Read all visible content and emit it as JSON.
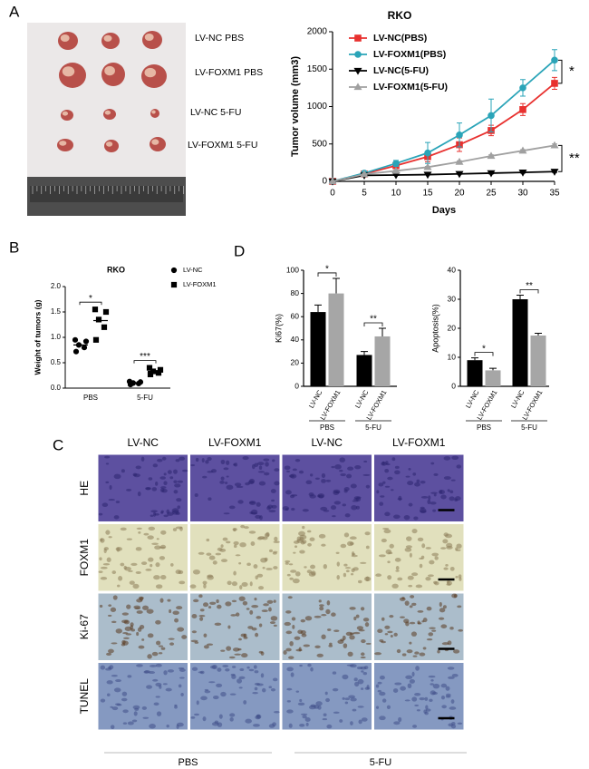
{
  "panel_labels": [
    "A",
    "B",
    "C",
    "D"
  ],
  "photo_labels": [
    "LV-NC PBS",
    "LV-FOXM1 PBS",
    "LV-NC 5-FU",
    "LV-FOXM1 5-FU"
  ],
  "chart_data": [
    {
      "type": "line",
      "title": "RKO",
      "xlabel": "Days",
      "ylabel": "Tumor volume (mm3)",
      "x": [
        0,
        5,
        10,
        15,
        20,
        25,
        30,
        35
      ],
      "xlim": [
        0,
        35
      ],
      "xticks": [
        0,
        5,
        10,
        15,
        20,
        25,
        30,
        35
      ],
      "ylim": [
        0,
        2000
      ],
      "yticks": [
        0,
        500,
        1000,
        1500,
        2000
      ],
      "legend": "upper left",
      "series": [
        {
          "name": "LV-NC(PBS)",
          "color": "#e8312f",
          "marker": "square",
          "values": [
            0,
            100,
            210,
            330,
            490,
            680,
            960,
            1310
          ],
          "errors": [
            0,
            15,
            30,
            70,
            90,
            70,
            80,
            80
          ]
        },
        {
          "name": "LV-FOXM1(PBS)",
          "color": "#2aa4b8",
          "marker": "circle",
          "values": [
            0,
            110,
            240,
            380,
            620,
            880,
            1250,
            1620
          ],
          "errors": [
            0,
            20,
            40,
            140,
            160,
            220,
            110,
            140
          ]
        },
        {
          "name": "LV-NC(5-FU)",
          "color": "#000000",
          "marker": "triangle-down",
          "values": [
            0,
            80,
            85,
            90,
            100,
            110,
            120,
            130
          ],
          "errors": [
            0,
            5,
            5,
            5,
            5,
            10,
            10,
            10
          ]
        },
        {
          "name": "LV-FOXM1(5-FU)",
          "color": "#a0a0a0",
          "marker": "triangle-up",
          "values": [
            0,
            95,
            140,
            190,
            260,
            340,
            410,
            480
          ],
          "errors": [
            0,
            5,
            10,
            10,
            15,
            15,
            15,
            20
          ]
        }
      ],
      "annotations": [
        "*",
        "**"
      ]
    },
    {
      "type": "dot",
      "title": "RKO",
      "ylabel": "Weight of tumors (g)",
      "categories": [
        "PBS",
        "5-FU"
      ],
      "ylim": [
        0,
        2
      ],
      "yticks": [
        {
          "value": 0,
          "label": "0.0"
        },
        0.5,
        {
          "value": 1,
          "label": "1.0"
        },
        1.5,
        {
          "value": 2,
          "label": "2.0"
        }
      ],
      "legend": "upper right",
      "series": [
        {
          "name": "LV-NC",
          "color": "#000000",
          "marker": "circle",
          "values": [
            [
              0.72,
              0.8,
              0.85,
              0.92,
              0.95
            ],
            [
              0.07,
              0.09,
              0.1,
              0.12,
              0.13
            ]
          ],
          "means": [
            0.85,
            0.1
          ]
        },
        {
          "name": "LV-FOXM1",
          "color": "#000000",
          "marker": "square",
          "values": [
            [
              0.95,
              1.2,
              1.35,
              1.5,
              1.55
            ],
            [
              0.27,
              0.3,
              0.33,
              0.36,
              0.4
            ]
          ],
          "means": [
            1.33,
            0.33
          ]
        }
      ],
      "annotations": [
        "*",
        "***"
      ]
    },
    {
      "type": "bar",
      "ylabel": "Ki67(%)",
      "categories": [
        "LV-NC",
        "LV-FOXM1",
        "LV-NC",
        "LV-FOXM1"
      ],
      "groups": [
        "PBS",
        "5-FU"
      ],
      "values": [
        64,
        80,
        27,
        43
      ],
      "errors": [
        6,
        13,
        3,
        7
      ],
      "colors": [
        "#000000",
        "#a6a6a6"
      ],
      "ylim": [
        0,
        100
      ],
      "yticks": [
        0,
        20,
        40,
        60,
        80,
        100
      ],
      "annotations": [
        "*",
        "**"
      ]
    },
    {
      "type": "bar",
      "ylabel": "Apoptosis(%)",
      "categories": [
        "LV-NC",
        "LV-FOXM1",
        "LV-NC",
        "LV-FOXM1"
      ],
      "groups": [
        "PBS",
        "5-FU"
      ],
      "values": [
        9,
        5.5,
        30,
        17.5
      ],
      "errors": [
        0.8,
        0.7,
        1.4,
        0.8
      ],
      "colors": [
        "#000000",
        "#a6a6a6"
      ],
      "ylim": [
        0,
        40
      ],
      "yticks": [
        0,
        10,
        20,
        30,
        40
      ],
      "annotations": [
        "*",
        "**"
      ]
    }
  ],
  "micrographs": {
    "columns": [
      "LV-NC",
      "LV-FOXM1",
      "LV-NC",
      "LV-FOXM1"
    ],
    "rows": [
      "HE",
      "FOXM1",
      "Ki-67",
      "TUNEL"
    ],
    "groups": [
      "PBS",
      "5-FU"
    ]
  }
}
